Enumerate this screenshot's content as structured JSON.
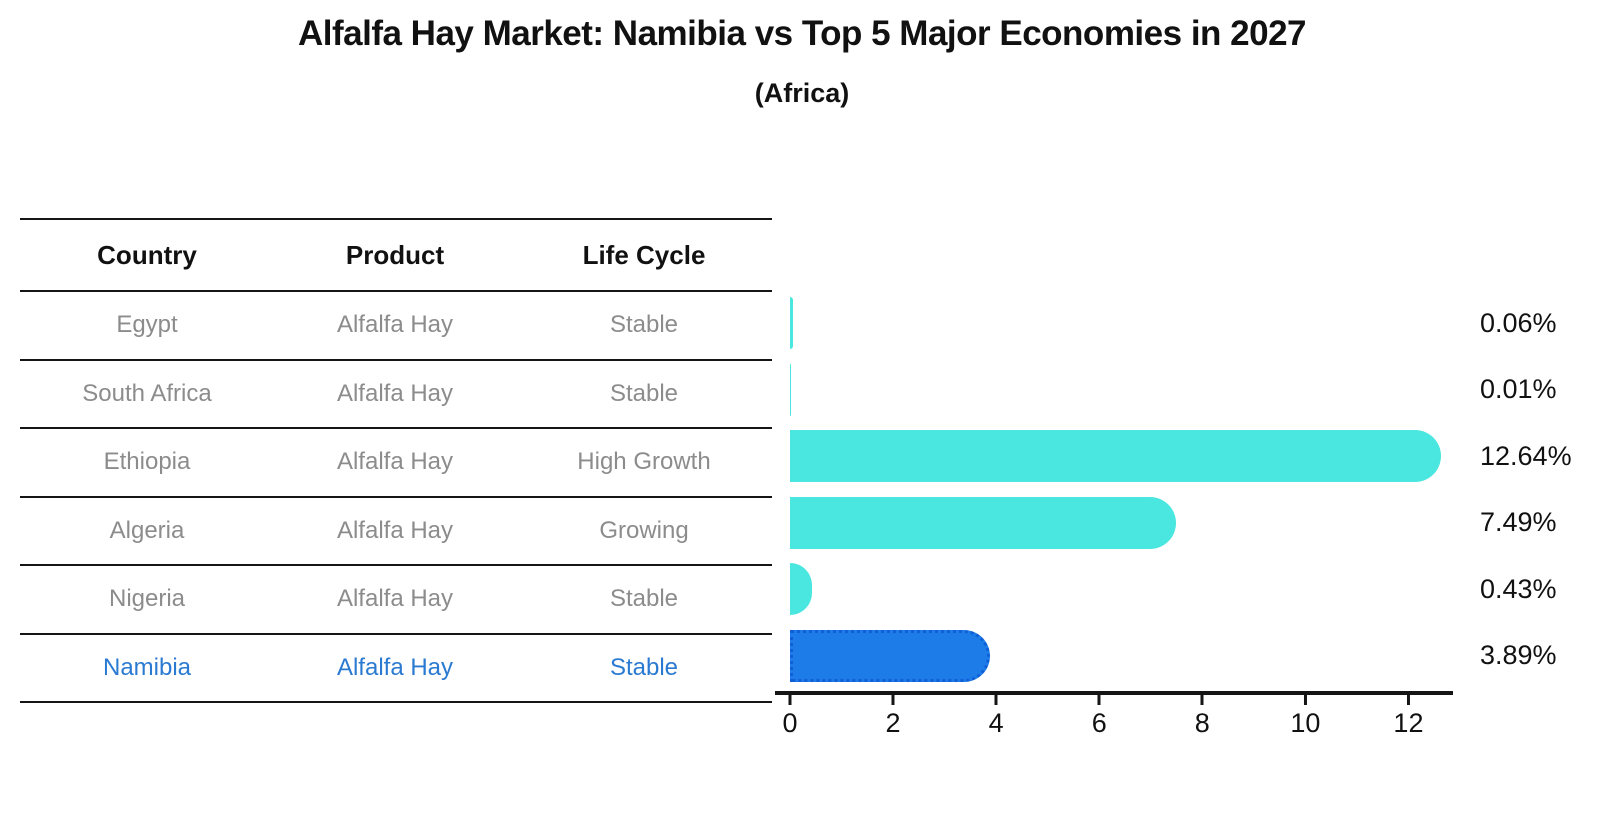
{
  "header": {
    "title": "Alfalfa Hay Market: Namibia vs Top 5 Major Economies in 2027",
    "subtitle": "(Africa)"
  },
  "table": {
    "headers": [
      "Country",
      "Product",
      "Life Cycle"
    ],
    "rows": [
      {
        "country": "Egypt",
        "product": "Alfalfa Hay",
        "life_cycle": "Stable",
        "highlight": false
      },
      {
        "country": "South Africa",
        "product": "Alfalfa Hay",
        "life_cycle": "Stable",
        "highlight": false
      },
      {
        "country": "Ethiopia",
        "product": "Alfalfa Hay",
        "life_cycle": "High Growth",
        "highlight": false
      },
      {
        "country": "Algeria",
        "product": "Alfalfa Hay",
        "life_cycle": "Growing",
        "highlight": false
      },
      {
        "country": "Nigeria",
        "product": "Alfalfa Hay",
        "life_cycle": "Stable",
        "highlight": false
      },
      {
        "country": "Namibia",
        "product": "Alfalfa Hay",
        "life_cycle": "Stable",
        "highlight": true
      }
    ],
    "row_text_color": "#8c8c8c",
    "highlight_text_color": "#2a7ad2"
  },
  "chart_data": {
    "type": "bar",
    "orientation": "horizontal",
    "title": "Alfalfa Hay Market: Namibia vs Top 5 Major Economies in 2027",
    "subtitle": "(Africa)",
    "categories": [
      "Egypt",
      "South Africa",
      "Ethiopia",
      "Algeria",
      "Nigeria",
      "Namibia"
    ],
    "values": [
      0.06,
      0.01,
      12.64,
      7.49,
      0.43,
      3.89
    ],
    "value_labels": [
      "0.06%",
      "0.01%",
      "12.64%",
      "7.49%",
      "0.43%",
      "3.89%"
    ],
    "xlabel": "",
    "ylabel": "",
    "xlim": [
      0,
      13
    ],
    "xticks": [
      0,
      2,
      4,
      6,
      8,
      10,
      12
    ],
    "grid": false,
    "legend": false,
    "bar_color": "#49e7e0",
    "highlight_bar_color": "#1e7ce8",
    "highlight_bar_border_color": "#0f5fd7",
    "highlight_index": 5
  }
}
